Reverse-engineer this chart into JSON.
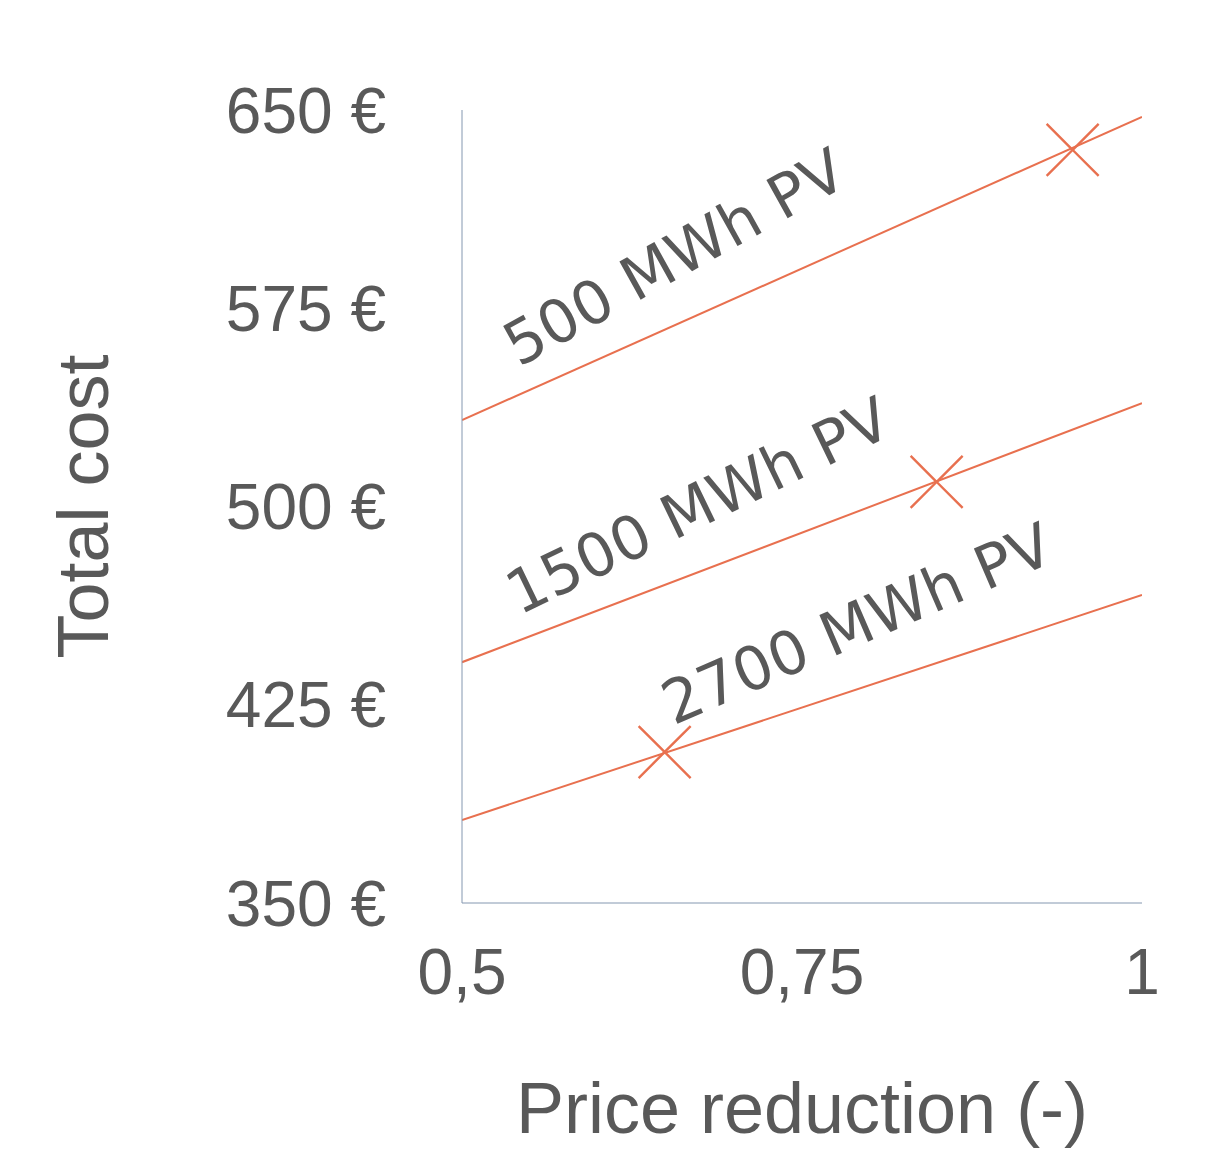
{
  "chart_data": {
    "type": "line",
    "xlabel": "Price reduction (-)",
    "ylabel": "Total cost",
    "xlim": [
      0.5,
      1
    ],
    "xticks": [
      {
        "value": 0.5,
        "label": "0,5"
      },
      {
        "value": 0.75,
        "label": "0,75"
      },
      {
        "value": 1,
        "label": "1"
      }
    ],
    "ylim": [
      350,
      650
    ],
    "yticks": [
      {
        "value": 350,
        "label": "350 €"
      },
      {
        "value": 425,
        "label": "425 €"
      },
      {
        "value": 500,
        "label": "500 €"
      },
      {
        "value": 575,
        "label": "575 €"
      },
      {
        "value": 650,
        "label": "650 €"
      }
    ],
    "grid": false,
    "series": [
      {
        "name": "500 MWh PV",
        "color": "#e8704f",
        "x": [
          0.5,
          1
        ],
        "values": [
          532.7,
          647.4
        ]
      },
      {
        "name": "1500 MWh PV",
        "color": "#e8704f",
        "x": [
          0.5,
          1
        ],
        "values": [
          441.1,
          539.1
        ]
      },
      {
        "name": "2700 MWh PV",
        "color": "#e8704f",
        "x": [
          0.5,
          1
        ],
        "values": [
          381.4,
          466.5
        ]
      },
      {
        "type": "scatter",
        "color": "#e8704f",
        "marker": "cross",
        "x": [
          0.949,
          0.849,
          0.649
        ],
        "values": [
          634.9,
          509.3,
          407.1
        ]
      }
    ]
  }
}
